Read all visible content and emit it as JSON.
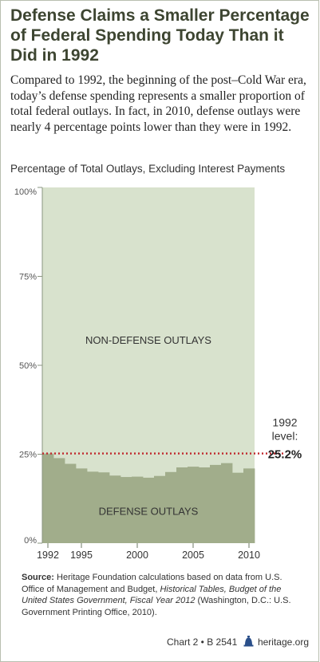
{
  "header": {
    "title": "Defense Claims a Smaller Percentage of Federal Spending Today Than it Did in 1992",
    "intro": "Compared to 1992, the beginning of the post–Cold War era, today’s defense spending represents a smaller proportion of total federal outlays. In fact, in 2010, defense outlays were nearly 4 percentage points lower than they were in 1992."
  },
  "chart_data": {
    "type": "area",
    "title": "Percentage of Total Outlays, Excluding Interest Payments",
    "x": [
      1992,
      1993,
      1994,
      1995,
      1996,
      1997,
      1998,
      1999,
      2000,
      2001,
      2002,
      2003,
      2004,
      2005,
      2006,
      2007,
      2008,
      2009,
      2010
    ],
    "series": [
      {
        "name": "DEFENSE OUTLAYS",
        "values": [
          25.2,
          23.9,
          22.3,
          21.0,
          20.1,
          19.9,
          19.0,
          18.6,
          18.7,
          18.4,
          18.9,
          20.0,
          21.3,
          21.5,
          21.3,
          22.0,
          22.5,
          19.8,
          21.0
        ],
        "color": "#a1ad8b"
      },
      {
        "name": "NON-DEFENSE OUTLAYS",
        "note": "remainder to 100%",
        "color": "#d8e2cd"
      }
    ],
    "y_ticks": [
      "0%",
      "25%",
      "50%",
      "75%",
      "100%"
    ],
    "y_tick_values": [
      0,
      25,
      50,
      75,
      100
    ],
    "x_ticks": [
      "1992",
      "1995",
      "2000",
      "2005",
      "2010"
    ],
    "x_tick_values": [
      1992,
      1995,
      2000,
      2005,
      2010
    ],
    "ylim": [
      0,
      100
    ],
    "reference_line": {
      "value": 25.2,
      "label_line1": "1992",
      "label_line2": "level:",
      "value_label": "25.2%",
      "color": "#c0282d"
    },
    "area_labels": {
      "upper": "NON-DEFENSE OUTLAYS",
      "lower": "DEFENSE OUTLAYS"
    }
  },
  "source": {
    "label": "Source:",
    "text_1": " Heritage Foundation calculations based on data from U.S. Office of Management and Budget, ",
    "italic": "Historical Tables, Budget of the United States Government, Fiscal Year 2012",
    "text_2": " (Washington, D.C.: U.S. Government Printing Office, 2010)."
  },
  "footer": {
    "chart_id": "Chart 2 • B 2541",
    "site": "heritage.org",
    "icon": "liberty-bell-icon"
  }
}
